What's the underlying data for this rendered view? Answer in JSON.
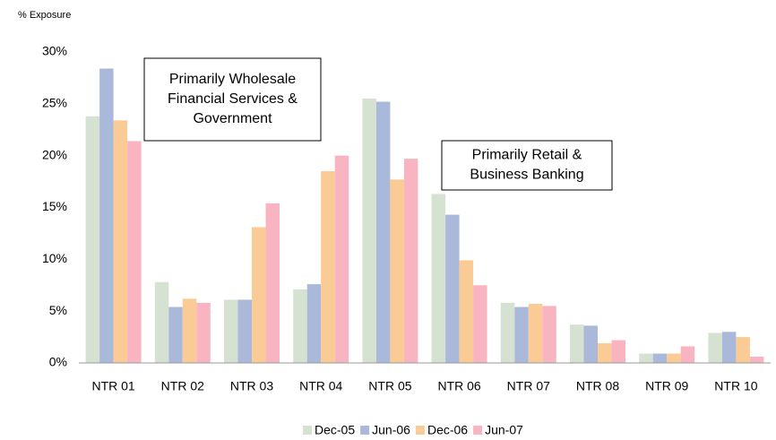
{
  "chart_data": {
    "type": "bar",
    "y_axis_label": "% Exposure",
    "categories": [
      "NTR 01",
      "NTR 02",
      "NTR 03",
      "NTR 04",
      "NTR 05",
      "NTR 06",
      "NTR 07",
      "NTR 08",
      "NTR 09",
      "NTR 10"
    ],
    "series": [
      {
        "name": "Dec-05",
        "color": "#d6e2d1",
        "values": [
          23.8,
          7.8,
          6.1,
          7.1,
          25.5,
          16.3,
          5.8,
          3.7,
          0.9,
          2.9
        ]
      },
      {
        "name": "Jun-06",
        "color": "#aab9da",
        "values": [
          28.4,
          5.4,
          6.1,
          7.6,
          25.2,
          14.3,
          5.4,
          3.6,
          0.9,
          3.0
        ]
      },
      {
        "name": "Dec-06",
        "color": "#fbcb95",
        "values": [
          23.4,
          6.2,
          13.1,
          18.5,
          17.7,
          9.9,
          5.7,
          1.9,
          0.9,
          2.5
        ]
      },
      {
        "name": "Jun-07",
        "color": "#f8b5c1",
        "values": [
          21.4,
          5.8,
          15.4,
          20.0,
          19.7,
          7.5,
          5.5,
          2.2,
          1.6,
          0.6
        ]
      }
    ],
    "ylim": [
      0,
      30
    ],
    "yticks": [
      {
        "value": 0,
        "label": "0%"
      },
      {
        "value": 5,
        "label": "5%"
      },
      {
        "value": 10,
        "label": "10%"
      },
      {
        "value": 15,
        "label": "15%"
      },
      {
        "value": 20,
        "label": "20%"
      },
      {
        "value": 25,
        "label": "25%"
      },
      {
        "value": 30,
        "label": "30%"
      }
    ],
    "annotations": [
      {
        "lines": [
          "Primarily Wholesale",
          "Financial Services &",
          "Government"
        ]
      },
      {
        "lines": [
          "Primarily Retail &",
          "Business Banking"
        ]
      }
    ],
    "legend": "bottom"
  }
}
